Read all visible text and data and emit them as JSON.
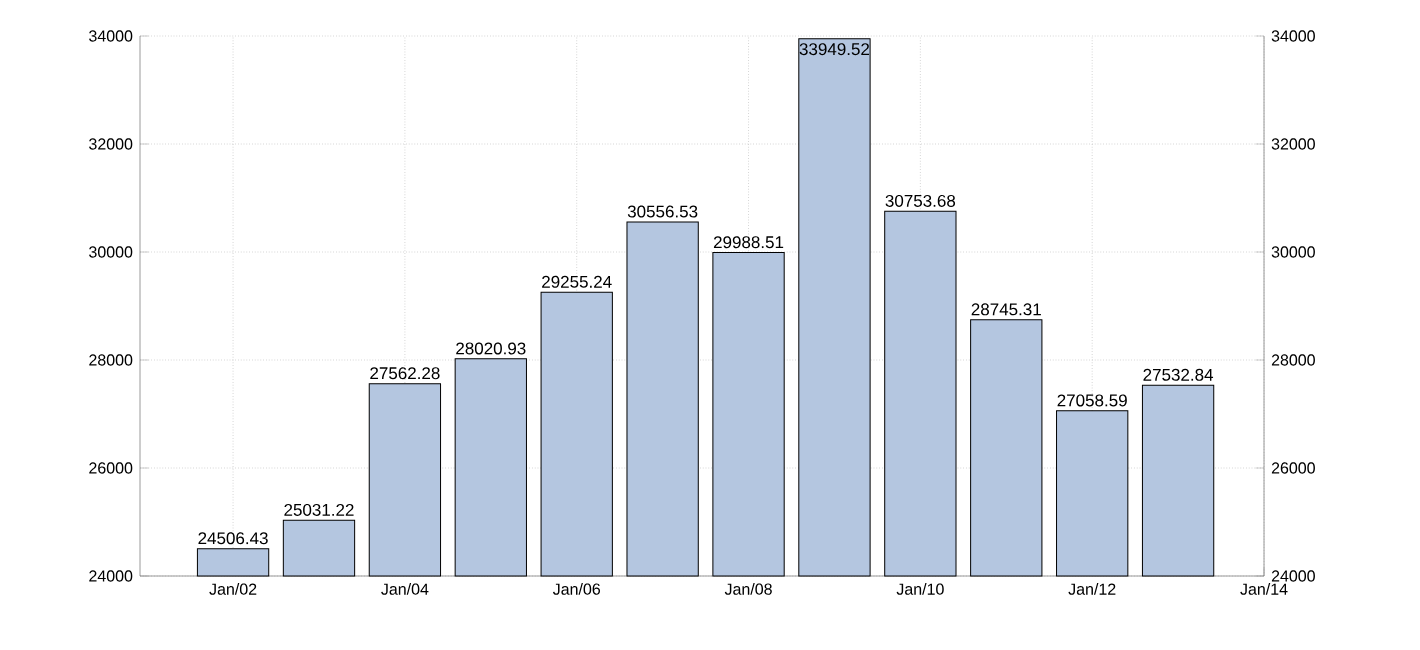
{
  "chart_data": {
    "type": "bar",
    "x": [
      "2002",
      "2003",
      "2004",
      "2005",
      "2006",
      "2007",
      "2008",
      "2009",
      "2010",
      "2011",
      "2012",
      "2013"
    ],
    "values": [
      24506.43,
      25031.22,
      27562.28,
      28020.93,
      29255.24,
      30556.53,
      29988.51,
      33949.52,
      30753.68,
      28745.31,
      27058.59,
      27532.84
    ],
    "value_labels": [
      "24506.43",
      "25031.22",
      "27562.28",
      "28020.93",
      "29255.24",
      "30556.53",
      "29988.51",
      "33949.52",
      "30753.68",
      "28745.31",
      "27058.59",
      "27532.84"
    ],
    "color": "#b4c6e0",
    "xlim": [
      "2000-12",
      "2014"
    ],
    "xticks": [
      {
        "value": "2002",
        "label": "Jan/02"
      },
      {
        "value": "2004",
        "label": "Jan/04"
      },
      {
        "value": "2006",
        "label": "Jan/06"
      },
      {
        "value": "2008",
        "label": "Jan/08"
      },
      {
        "value": "2010",
        "label": "Jan/10"
      },
      {
        "value": "2012",
        "label": "Jan/12"
      },
      {
        "value": "2014",
        "label": "Jan/14"
      }
    ],
    "ylim": [
      24000,
      34000
    ],
    "yticks": [
      24000,
      26000,
      28000,
      30000,
      32000,
      34000
    ],
    "y2lim": [
      24000,
      34000
    ],
    "y2ticks": [
      24000,
      26000,
      28000,
      30000,
      32000,
      34000
    ],
    "grid": true
  }
}
